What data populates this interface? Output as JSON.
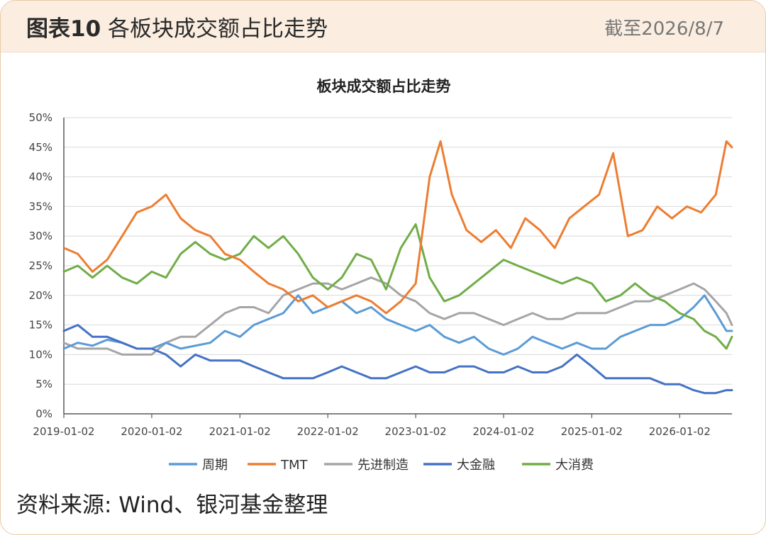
{
  "header": {
    "figure_number": "图表10",
    "title": "各板块成交额占比走势",
    "date": "截至2026/8/7"
  },
  "source": "资料来源: Wind、银河基金整理",
  "chart_data": {
    "type": "line",
    "title": "板块成交额占比走势",
    "xlabel": "",
    "ylabel": "",
    "x_ticks": [
      "2019-01-02",
      "2020-01-02",
      "2021-01-02",
      "2022-01-02",
      "2023-01-02",
      "2024-01-02",
      "2025-01-02",
      "2026-01-02"
    ],
    "y_ticks": [
      "0%",
      "5%",
      "10%",
      "15%",
      "20%",
      "25%",
      "30%",
      "35%",
      "40%",
      "45%",
      "50%"
    ],
    "xlim": [
      "2019-01-02",
      "2026-08-07"
    ],
    "ylim": [
      0,
      50
    ],
    "unit": "%",
    "grid": "horizontal",
    "legend": "bottom",
    "series": [
      {
        "name": "周期",
        "color": "#5b9bd5",
        "values": [
          [
            "2019-01-02",
            11
          ],
          [
            "2019-03-01",
            12
          ],
          [
            "2019-05-01",
            11.5
          ],
          [
            "2019-07-01",
            12.5
          ],
          [
            "2019-09-01",
            12
          ],
          [
            "2019-11-01",
            11
          ],
          [
            "2020-01-02",
            11
          ],
          [
            "2020-03-01",
            12
          ],
          [
            "2020-05-01",
            11
          ],
          [
            "2020-07-01",
            11.5
          ],
          [
            "2020-09-01",
            12
          ],
          [
            "2020-11-01",
            14
          ],
          [
            "2021-01-02",
            13
          ],
          [
            "2021-03-01",
            15
          ],
          [
            "2021-05-01",
            16
          ],
          [
            "2021-07-01",
            17
          ],
          [
            "2021-09-01",
            20
          ],
          [
            "2021-11-01",
            17
          ],
          [
            "2022-01-02",
            18
          ],
          [
            "2022-03-01",
            19
          ],
          [
            "2022-05-01",
            17
          ],
          [
            "2022-07-01",
            18
          ],
          [
            "2022-09-01",
            16
          ],
          [
            "2022-11-01",
            15
          ],
          [
            "2023-01-02",
            14
          ],
          [
            "2023-03-01",
            15
          ],
          [
            "2023-05-01",
            13
          ],
          [
            "2023-07-01",
            12
          ],
          [
            "2023-09-01",
            13
          ],
          [
            "2023-11-01",
            11
          ],
          [
            "2024-01-02",
            10
          ],
          [
            "2024-03-01",
            11
          ],
          [
            "2024-05-01",
            13
          ],
          [
            "2024-07-01",
            12
          ],
          [
            "2024-09-01",
            11
          ],
          [
            "2024-11-01",
            12
          ],
          [
            "2025-01-02",
            11
          ],
          [
            "2025-03-01",
            11
          ],
          [
            "2025-05-01",
            13
          ],
          [
            "2025-07-01",
            14
          ],
          [
            "2025-09-01",
            15
          ],
          [
            "2025-11-01",
            15
          ],
          [
            "2026-01-02",
            16
          ],
          [
            "2026-03-01",
            18
          ],
          [
            "2026-04-15",
            20
          ],
          [
            "2026-06-01",
            17
          ],
          [
            "2026-07-15",
            14
          ],
          [
            "2026-08-07",
            14
          ]
        ]
      },
      {
        "name": "TMT",
        "color": "#ed7d31",
        "values": [
          [
            "2019-01-02",
            28
          ],
          [
            "2019-03-01",
            27
          ],
          [
            "2019-05-01",
            24
          ],
          [
            "2019-07-01",
            26
          ],
          [
            "2019-09-01",
            30
          ],
          [
            "2019-11-01",
            34
          ],
          [
            "2020-01-02",
            35
          ],
          [
            "2020-03-01",
            37
          ],
          [
            "2020-05-01",
            33
          ],
          [
            "2020-07-01",
            31
          ],
          [
            "2020-09-01",
            30
          ],
          [
            "2020-11-01",
            27
          ],
          [
            "2021-01-02",
            26
          ],
          [
            "2021-03-01",
            24
          ],
          [
            "2021-05-01",
            22
          ],
          [
            "2021-07-01",
            21
          ],
          [
            "2021-09-01",
            19
          ],
          [
            "2021-11-01",
            20
          ],
          [
            "2022-01-02",
            18
          ],
          [
            "2022-03-01",
            19
          ],
          [
            "2022-05-01",
            20
          ],
          [
            "2022-07-01",
            19
          ],
          [
            "2022-09-01",
            17
          ],
          [
            "2022-11-01",
            19
          ],
          [
            "2023-01-02",
            22
          ],
          [
            "2023-03-01",
            40
          ],
          [
            "2023-04-15",
            46
          ],
          [
            "2023-06-01",
            37
          ],
          [
            "2023-08-01",
            31
          ],
          [
            "2023-10-01",
            29
          ],
          [
            "2023-12-01",
            31
          ],
          [
            "2024-02-01",
            28
          ],
          [
            "2024-04-01",
            33
          ],
          [
            "2024-06-01",
            31
          ],
          [
            "2024-08-01",
            28
          ],
          [
            "2024-10-01",
            33
          ],
          [
            "2024-12-01",
            35
          ],
          [
            "2025-02-01",
            37
          ],
          [
            "2025-04-01",
            44
          ],
          [
            "2025-06-01",
            30
          ],
          [
            "2025-08-01",
            31
          ],
          [
            "2025-10-01",
            35
          ],
          [
            "2025-12-01",
            33
          ],
          [
            "2026-02-01",
            35
          ],
          [
            "2026-04-01",
            34
          ],
          [
            "2026-06-01",
            37
          ],
          [
            "2026-07-15",
            46
          ],
          [
            "2026-08-07",
            45
          ]
        ]
      },
      {
        "name": "先进制造",
        "color": "#a5a5a5",
        "values": [
          [
            "2019-01-02",
            12
          ],
          [
            "2019-03-01",
            11
          ],
          [
            "2019-05-01",
            11
          ],
          [
            "2019-07-01",
            11
          ],
          [
            "2019-09-01",
            10
          ],
          [
            "2019-11-01",
            10
          ],
          [
            "2020-01-02",
            10
          ],
          [
            "2020-03-01",
            12
          ],
          [
            "2020-05-01",
            13
          ],
          [
            "2020-07-01",
            13
          ],
          [
            "2020-09-01",
            15
          ],
          [
            "2020-11-01",
            17
          ],
          [
            "2021-01-02",
            18
          ],
          [
            "2021-03-01",
            18
          ],
          [
            "2021-05-01",
            17
          ],
          [
            "2021-07-01",
            20
          ],
          [
            "2021-09-01",
            21
          ],
          [
            "2021-11-01",
            22
          ],
          [
            "2022-01-02",
            22
          ],
          [
            "2022-03-01",
            21
          ],
          [
            "2022-05-01",
            22
          ],
          [
            "2022-07-01",
            23
          ],
          [
            "2022-09-01",
            22
          ],
          [
            "2022-11-01",
            20
          ],
          [
            "2023-01-02",
            19
          ],
          [
            "2023-03-01",
            17
          ],
          [
            "2023-05-01",
            16
          ],
          [
            "2023-07-01",
            17
          ],
          [
            "2023-09-01",
            17
          ],
          [
            "2023-11-01",
            16
          ],
          [
            "2024-01-02",
            15
          ],
          [
            "2024-03-01",
            16
          ],
          [
            "2024-05-01",
            17
          ],
          [
            "2024-07-01",
            16
          ],
          [
            "2024-09-01",
            16
          ],
          [
            "2024-11-01",
            17
          ],
          [
            "2025-01-02",
            17
          ],
          [
            "2025-03-01",
            17
          ],
          [
            "2025-05-01",
            18
          ],
          [
            "2025-07-01",
            19
          ],
          [
            "2025-09-01",
            19
          ],
          [
            "2025-11-01",
            20
          ],
          [
            "2026-01-02",
            21
          ],
          [
            "2026-03-01",
            22
          ],
          [
            "2026-04-15",
            21
          ],
          [
            "2026-06-01",
            19
          ],
          [
            "2026-07-15",
            17
          ],
          [
            "2026-08-07",
            15
          ]
        ]
      },
      {
        "name": "大金融",
        "color": "#4472c4",
        "values": [
          [
            "2019-01-02",
            14
          ],
          [
            "2019-03-01",
            15
          ],
          [
            "2019-05-01",
            13
          ],
          [
            "2019-07-01",
            13
          ],
          [
            "2019-09-01",
            12
          ],
          [
            "2019-11-01",
            11
          ],
          [
            "2020-01-02",
            11
          ],
          [
            "2020-03-01",
            10
          ],
          [
            "2020-05-01",
            8
          ],
          [
            "2020-07-01",
            10
          ],
          [
            "2020-09-01",
            9
          ],
          [
            "2020-11-01",
            9
          ],
          [
            "2021-01-02",
            9
          ],
          [
            "2021-03-01",
            8
          ],
          [
            "2021-05-01",
            7
          ],
          [
            "2021-07-01",
            6
          ],
          [
            "2021-09-01",
            6
          ],
          [
            "2021-11-01",
            6
          ],
          [
            "2022-01-02",
            7
          ],
          [
            "2022-03-01",
            8
          ],
          [
            "2022-05-01",
            7
          ],
          [
            "2022-07-01",
            6
          ],
          [
            "2022-09-01",
            6
          ],
          [
            "2022-11-01",
            7
          ],
          [
            "2023-01-02",
            8
          ],
          [
            "2023-03-01",
            7
          ],
          [
            "2023-05-01",
            7
          ],
          [
            "2023-07-01",
            8
          ],
          [
            "2023-09-01",
            8
          ],
          [
            "2023-11-01",
            7
          ],
          [
            "2024-01-02",
            7
          ],
          [
            "2024-03-01",
            8
          ],
          [
            "2024-05-01",
            7
          ],
          [
            "2024-07-01",
            7
          ],
          [
            "2024-09-01",
            8
          ],
          [
            "2024-11-01",
            10
          ],
          [
            "2025-01-02",
            8
          ],
          [
            "2025-03-01",
            6
          ],
          [
            "2025-05-01",
            6
          ],
          [
            "2025-07-01",
            6
          ],
          [
            "2025-09-01",
            6
          ],
          [
            "2025-11-01",
            5
          ],
          [
            "2026-01-02",
            5
          ],
          [
            "2026-03-01",
            4
          ],
          [
            "2026-04-15",
            3.5
          ],
          [
            "2026-06-01",
            3.5
          ],
          [
            "2026-07-15",
            4
          ],
          [
            "2026-08-07",
            4
          ]
        ]
      },
      {
        "name": "大消费",
        "color": "#70ad47",
        "values": [
          [
            "2019-01-02",
            24
          ],
          [
            "2019-03-01",
            25
          ],
          [
            "2019-05-01",
            23
          ],
          [
            "2019-07-01",
            25
          ],
          [
            "2019-09-01",
            23
          ],
          [
            "2019-11-01",
            22
          ],
          [
            "2020-01-02",
            24
          ],
          [
            "2020-03-01",
            23
          ],
          [
            "2020-05-01",
            27
          ],
          [
            "2020-07-01",
            29
          ],
          [
            "2020-09-01",
            27
          ],
          [
            "2020-11-01",
            26
          ],
          [
            "2021-01-02",
            27
          ],
          [
            "2021-03-01",
            30
          ],
          [
            "2021-05-01",
            28
          ],
          [
            "2021-07-01",
            30
          ],
          [
            "2021-09-01",
            27
          ],
          [
            "2021-11-01",
            23
          ],
          [
            "2022-01-02",
            21
          ],
          [
            "2022-03-01",
            23
          ],
          [
            "2022-05-01",
            27
          ],
          [
            "2022-07-01",
            26
          ],
          [
            "2022-09-01",
            21
          ],
          [
            "2022-11-01",
            28
          ],
          [
            "2023-01-02",
            32
          ],
          [
            "2023-03-01",
            23
          ],
          [
            "2023-05-01",
            19
          ],
          [
            "2023-07-01",
            20
          ],
          [
            "2023-09-01",
            22
          ],
          [
            "2023-11-01",
            24
          ],
          [
            "2024-01-02",
            26
          ],
          [
            "2024-03-01",
            25
          ],
          [
            "2024-05-01",
            24
          ],
          [
            "2024-07-01",
            23
          ],
          [
            "2024-09-01",
            22
          ],
          [
            "2024-11-01",
            23
          ],
          [
            "2025-01-02",
            22
          ],
          [
            "2025-03-01",
            19
          ],
          [
            "2025-05-01",
            20
          ],
          [
            "2025-07-01",
            22
          ],
          [
            "2025-09-01",
            20
          ],
          [
            "2025-11-01",
            19
          ],
          [
            "2026-01-02",
            17
          ],
          [
            "2026-03-01",
            16
          ],
          [
            "2026-04-15",
            14
          ],
          [
            "2026-06-01",
            13
          ],
          [
            "2026-07-15",
            11
          ],
          [
            "2026-08-07",
            13
          ]
        ]
      }
    ]
  }
}
